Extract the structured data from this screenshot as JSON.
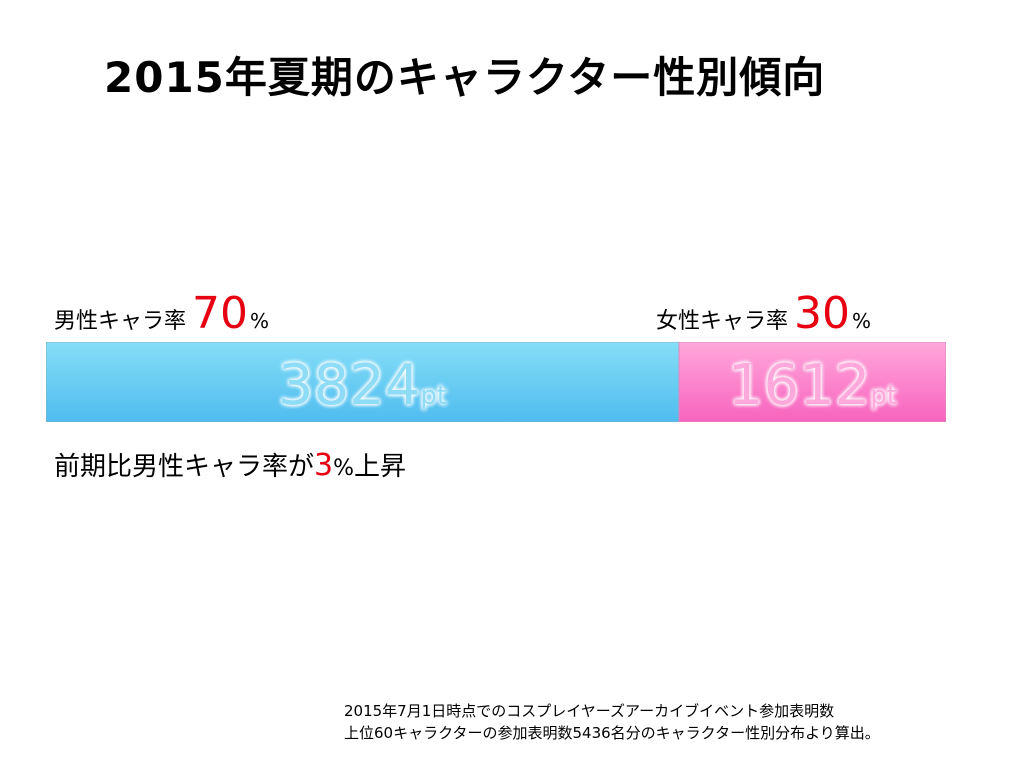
{
  "title": "2015年夏期のキャラクター性別傾向",
  "male": {
    "label": "男性キャラ率",
    "percent": "70",
    "percent_sign": "%",
    "points": "3824",
    "unit": "pt"
  },
  "female": {
    "label": "女性キャラ率",
    "percent": "30",
    "percent_sign": "%",
    "points": "1612",
    "unit": "pt"
  },
  "change_note": {
    "prefix": "前期比男性キャラ率が",
    "value": "3",
    "suffix_sign": "%",
    "suffix": "上昇"
  },
  "footnote": {
    "line1": "2015年7月1日時点でのコスプレイヤーズアーカイブイベント参加表明数",
    "line2": "上位60キャラクターの参加表明数5436名分のキャラクター性別分布より算出。"
  },
  "colors": {
    "male_top": "#86def7",
    "male_bottom": "#4fbcef",
    "female_top": "#ffa8dc",
    "female_bottom": "#f763bd",
    "accent_red": "#e60012"
  },
  "chart_data": {
    "type": "bar",
    "orientation": "horizontal-stacked",
    "title": "2015年夏期のキャラクター性別傾向",
    "categories": [
      "男性キャラ率",
      "女性キャラ率"
    ],
    "values": [
      3824,
      1612
    ],
    "percent": [
      70,
      30
    ],
    "unit": "pt",
    "total": 5436
  }
}
